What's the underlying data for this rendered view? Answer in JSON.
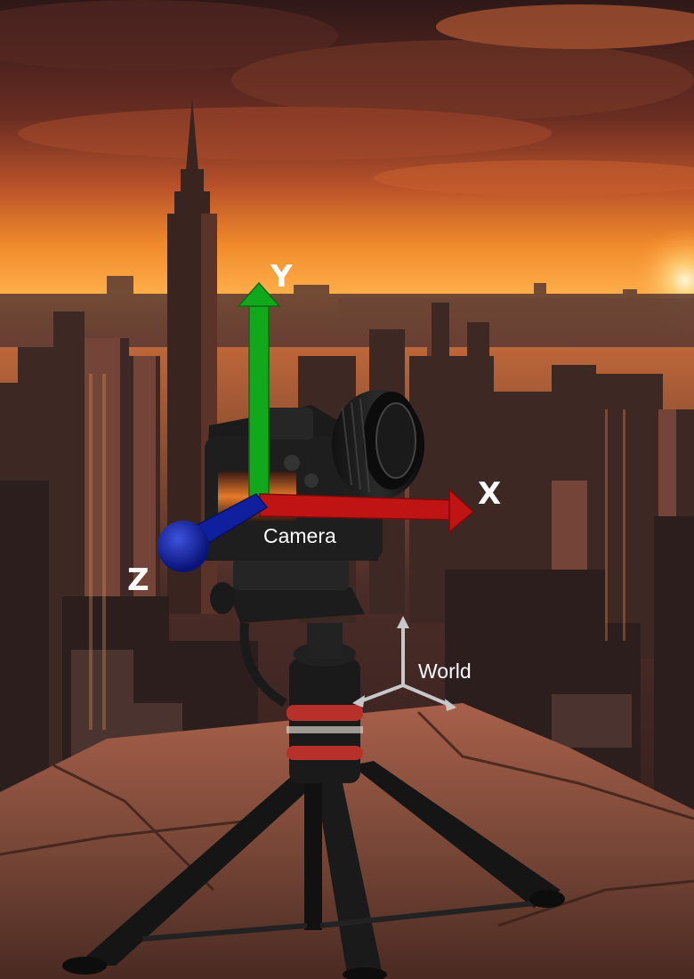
{
  "camera_frame": {
    "label": "Camera",
    "axes": [
      {
        "name": "X",
        "color": "#c01414"
      },
      {
        "name": "Y",
        "color": "#11a81b"
      },
      {
        "name": "Z",
        "color": "#0f1f9e"
      }
    ]
  },
  "world_frame": {
    "label": "World",
    "color": "#c8c8c8"
  },
  "colors": {
    "sky_top": "#3a1c1a",
    "sky_glow": "#f08a2a",
    "horizon": "#ffb04a",
    "city": "#3b2622",
    "ledge": "#8a5142"
  }
}
